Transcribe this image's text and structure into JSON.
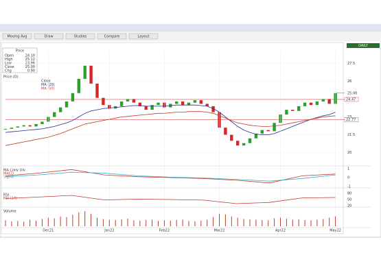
{
  "toolbar": {
    "tabs": [
      "Moving Avg",
      "Draw",
      "Studies",
      "Compare",
      "Layout"
    ],
    "status": "DAILY"
  },
  "info_box": {
    "title": "Price",
    "rows": [
      [
        "Open",
        "24.10"
      ],
      [
        "High",
        "25.12"
      ],
      [
        "Low",
        "23.96"
      ],
      [
        "Close",
        "25.00"
      ],
      [
        "Chg",
        "0.90"
      ]
    ]
  },
  "chart_data": [
    {
      "type": "candlestick",
      "title": "Price (D)",
      "categories": [
        null,
        null,
        null,
        null,
        null,
        null,
        null,
        "Dec21",
        null,
        null,
        null,
        null,
        null,
        null,
        null,
        null,
        null,
        "Jan22",
        null,
        null,
        null,
        null,
        null,
        null,
        null,
        null,
        "Feb22",
        null,
        null,
        null,
        null,
        null,
        null,
        null,
        null,
        "Mar22",
        null,
        null,
        null,
        null,
        null,
        null,
        null,
        null,
        null,
        "Apr22",
        null,
        null,
        null,
        null,
        null,
        null,
        null,
        null,
        "May22"
      ],
      "ylim": [
        19,
        28.5
      ],
      "yticks": [
        27.5,
        26,
        24.5,
        23,
        21.5,
        20
      ],
      "up_color": "#2ca02c",
      "down_color": "#d62728",
      "series": [
        {
          "name": "Close",
          "color": "#333333",
          "values": [
            22.0,
            22.1,
            22.2,
            22.3,
            22.2,
            22.4,
            22.6,
            23.0,
            23.4,
            23.8,
            24.3,
            25.0,
            26.2,
            27.3,
            25.8,
            24.6,
            24.0,
            23.7,
            23.9,
            24.3,
            24.5,
            24.2,
            23.9,
            23.6,
            24.0,
            24.2,
            23.8,
            24.1,
            24.3,
            24.0,
            24.2,
            24.4,
            24.1,
            23.9,
            23.4,
            22.1,
            21.5,
            21.0,
            20.6,
            20.8,
            21.2,
            21.6,
            21.9,
            21.8,
            22.5,
            23.2,
            23.6,
            23.5,
            23.9,
            24.2,
            24.0,
            24.3,
            24.5,
            24.1,
            25.0
          ]
        },
        {
          "name": "MA (20)",
          "color": "#1f2f8f",
          "values": [
            21.7,
            21.75,
            21.8,
            21.85,
            21.9,
            21.95,
            22.0,
            22.1,
            22.2,
            22.35,
            22.5,
            22.7,
            23.0,
            23.3,
            23.5,
            23.6,
            23.7,
            23.75,
            23.8,
            23.85,
            23.9,
            23.95,
            23.95,
            23.9,
            23.9,
            23.9,
            23.9,
            23.95,
            24.0,
            24.0,
            24.0,
            24.0,
            23.95,
            23.9,
            23.7,
            23.4,
            23.0,
            22.6,
            22.2,
            21.9,
            21.7,
            21.55,
            21.5,
            21.5,
            21.6,
            21.8,
            22.0,
            22.2,
            22.4,
            22.6,
            22.8,
            22.95,
            23.1,
            23.2,
            23.4
          ]
        },
        {
          "name": "MA (50)",
          "color": "#c0392b",
          "values": [
            20.6,
            20.7,
            20.8,
            20.9,
            21.0,
            21.1,
            21.2,
            21.3,
            21.45,
            21.6,
            21.8,
            22.0,
            22.2,
            22.4,
            22.5,
            22.6,
            22.7,
            22.8,
            22.9,
            23.0,
            23.05,
            23.1,
            23.15,
            23.2,
            23.25,
            23.3,
            23.3,
            23.35,
            23.4,
            23.4,
            23.45,
            23.45,
            23.45,
            23.4,
            23.3,
            23.1,
            22.9,
            22.7,
            22.5,
            22.4,
            22.3,
            22.25,
            22.2,
            22.2,
            22.25,
            22.3,
            22.4,
            22.5,
            22.6,
            22.7,
            22.8,
            22.9,
            23.0,
            23.05,
            23.1
          ]
        }
      ],
      "levels": [
        {
          "value": 24.47,
          "label": "24.47"
        },
        {
          "value": 22.77,
          "label": "22.77"
        }
      ],
      "last_price": {
        "value": 25.0,
        "label": "25.00"
      }
    },
    {
      "type": "line",
      "title": "MA Conv Div",
      "ylim": [
        -1,
        1
      ],
      "yticks": [
        1,
        0,
        -1
      ],
      "series": [
        {
          "name": "MACD",
          "color": "#c0392b",
          "values": [
            0.2,
            0.5,
            0.9,
            0.3,
            0.1,
            0.0,
            -0.1,
            -0.3,
            -0.6,
            0.2,
            0.4
          ]
        },
        {
          "name": "Signal",
          "color": "#3fa9c9",
          "values": [
            0.1,
            0.3,
            0.6,
            0.5,
            0.2,
            0.05,
            -0.05,
            -0.2,
            -0.4,
            -0.1,
            0.3
          ]
        }
      ]
    },
    {
      "type": "line",
      "title": "RSI",
      "ylim": [
        20,
        80
      ],
      "yticks": [
        80,
        50,
        20
      ],
      "series": [
        {
          "name": "RSI (14)",
          "color": "#c0392b",
          "values": [
            55,
            62,
            70,
            48,
            52,
            50,
            47,
            30,
            36,
            58,
            60
          ]
        }
      ]
    },
    {
      "type": "bar",
      "title": "Volume",
      "ylim": [
        0,
        500
      ],
      "color": "#c0392b",
      "values": [
        180,
        150,
        160,
        140,
        200,
        170,
        220,
        260,
        240,
        300,
        280,
        350,
        420,
        460,
        380,
        260,
        220,
        200,
        190,
        210,
        230,
        180,
        170,
        190,
        200,
        160,
        180,
        170,
        190,
        200,
        160,
        150,
        170,
        200,
        280,
        380,
        360,
        300,
        260,
        220,
        210,
        200,
        190,
        180,
        240,
        260,
        230,
        200,
        210,
        190,
        180,
        200,
        220,
        260,
        300
      ]
    }
  ]
}
